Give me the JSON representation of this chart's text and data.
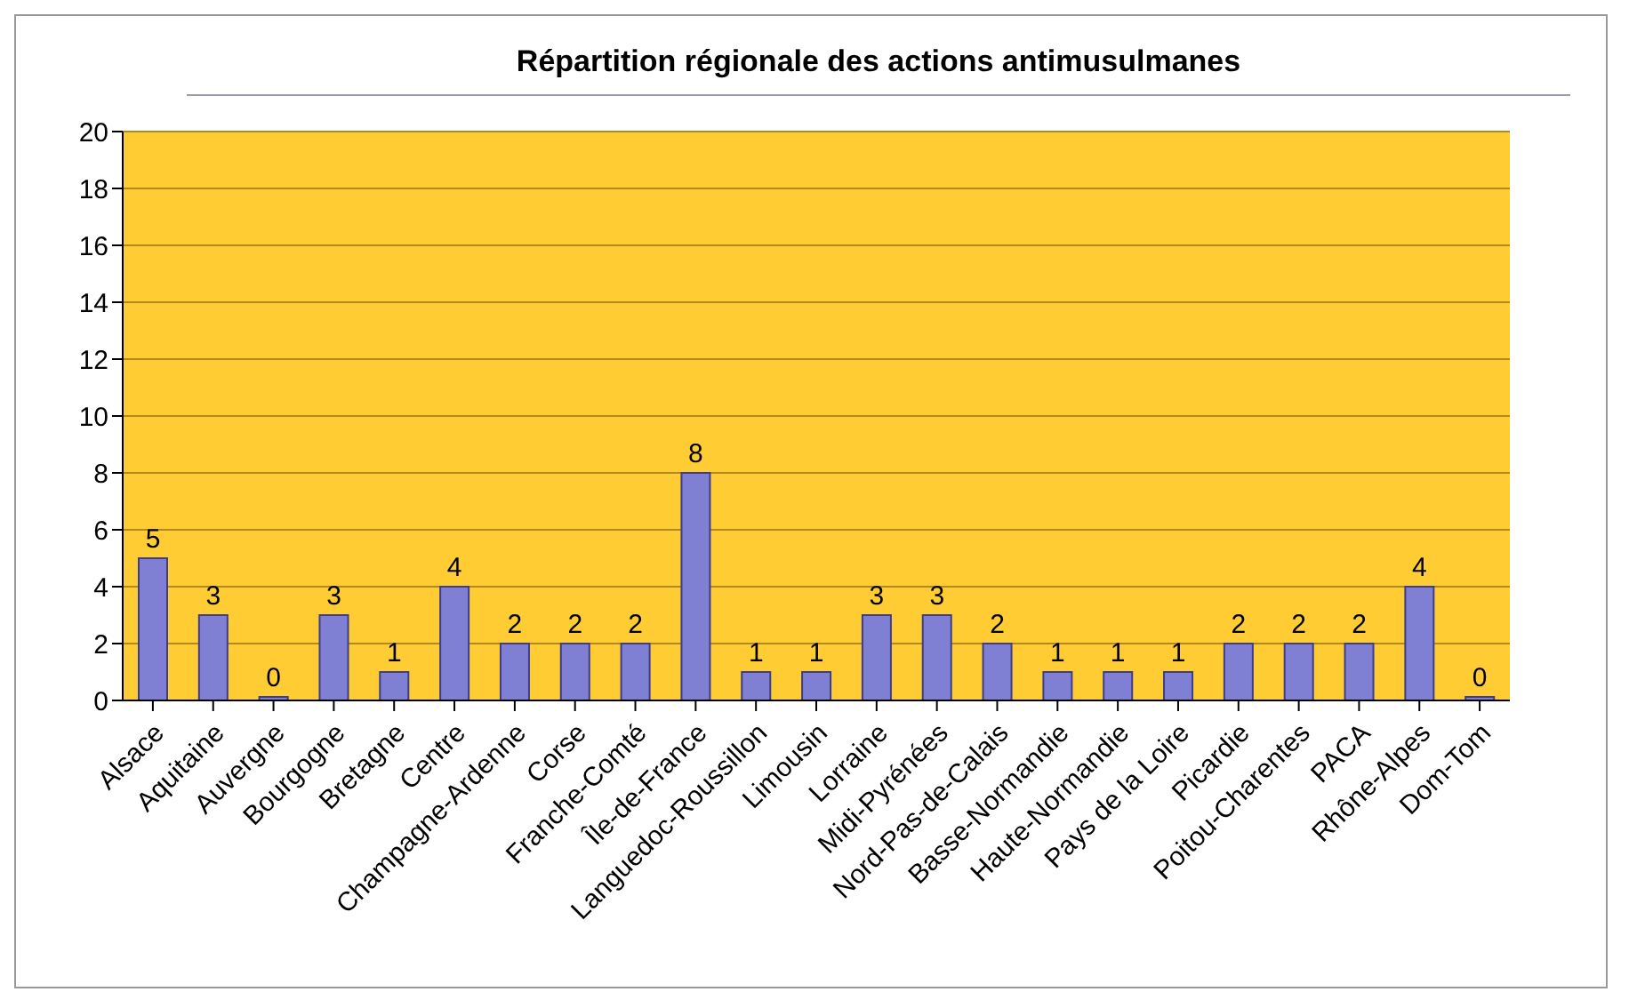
{
  "chart_data": {
    "type": "bar",
    "title": "Répartition régionale des actions antimusulmanes",
    "categories": [
      "Alsace",
      "Aquitaine",
      "Auvergne",
      "Bourgogne",
      "Bretagne",
      "Centre",
      "Champagne-Ardenne",
      "Corse",
      "Franche-Comté",
      "Île-de-France",
      "Languedoc-Roussillon",
      "Limousin",
      "Lorraine",
      "Midi-Pyrénées",
      "Nord-Pas-de-Calais",
      "Basse-Normandie",
      "Haute-Normandie",
      "Pays de la Loire",
      "Picardie",
      "Poitou-Charentes",
      "PACA",
      "Rhône-Alpes",
      "Dom-Tom"
    ],
    "values": [
      5,
      3,
      0,
      3,
      1,
      4,
      2,
      2,
      2,
      8,
      1,
      1,
      3,
      3,
      2,
      1,
      1,
      1,
      2,
      2,
      2,
      4,
      0
    ],
    "color": "#7f7fd4",
    "ylim": [
      0,
      20
    ],
    "yticks": [
      0,
      2,
      4,
      6,
      8,
      10,
      12,
      14,
      16,
      18,
      20
    ],
    "grid": "y",
    "data_labels": true
  }
}
